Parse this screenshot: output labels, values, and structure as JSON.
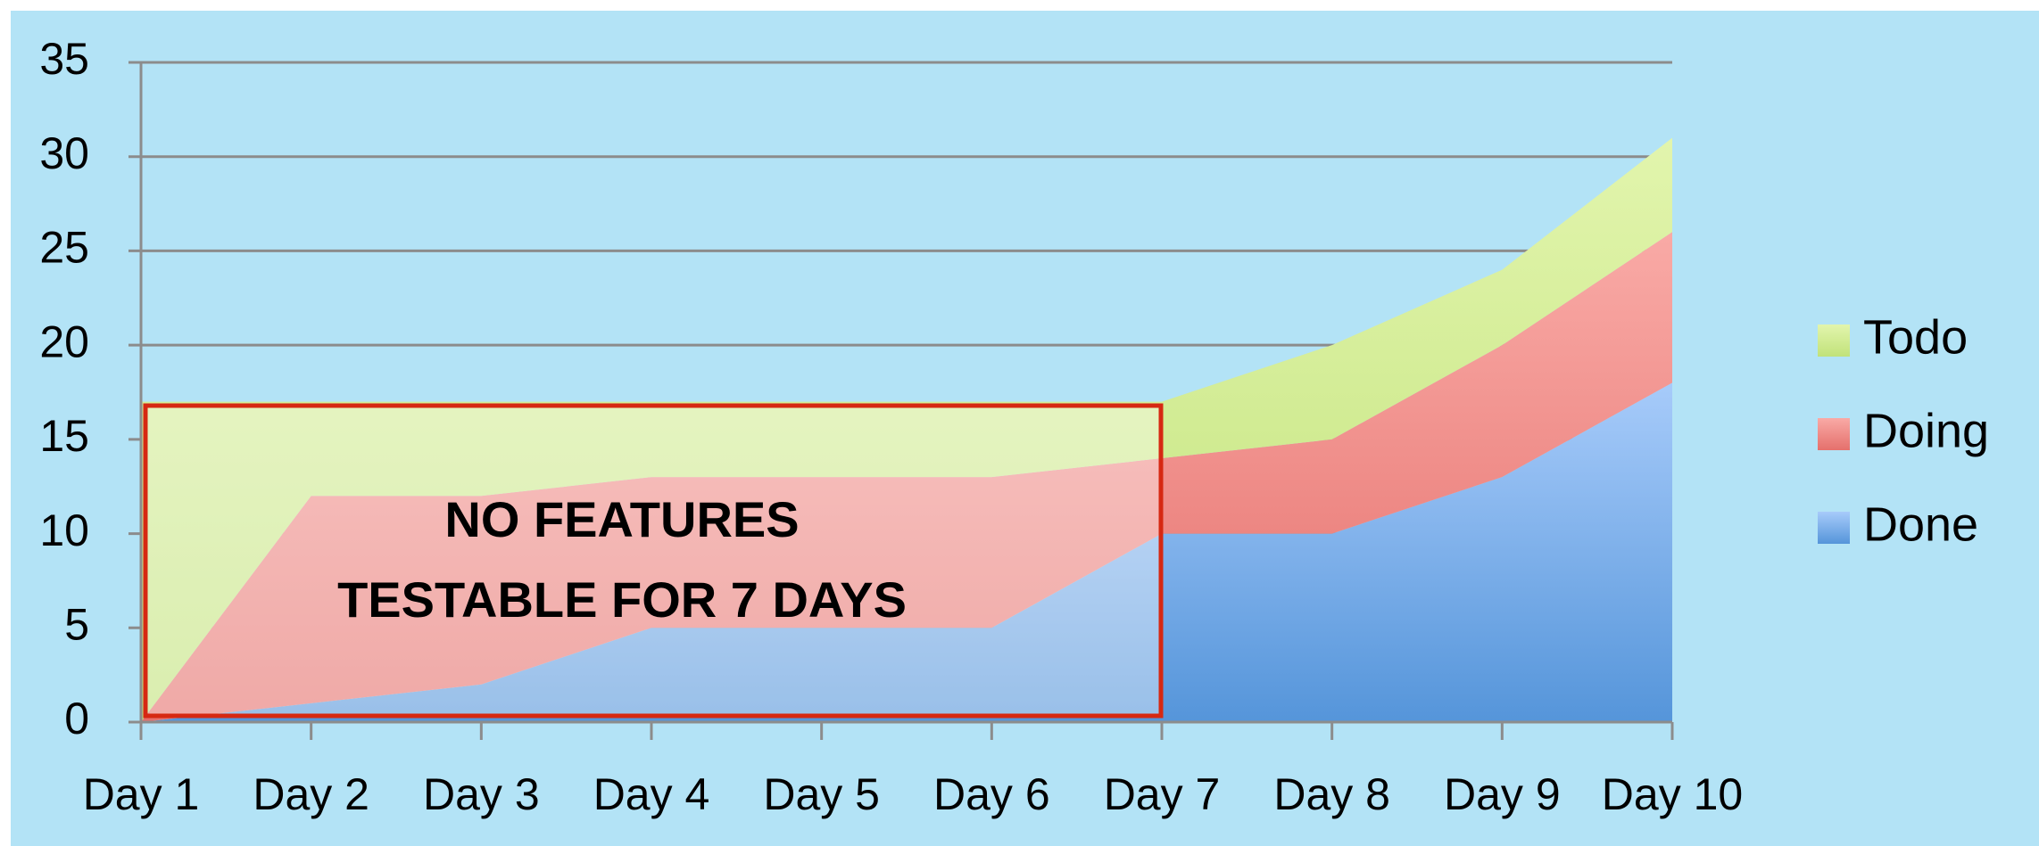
{
  "chart_data": {
    "type": "stacked-area",
    "categories": [
      "Day 1",
      "Day 2",
      "Day 3",
      "Day 4",
      "Day 5",
      "Day 6",
      "Day 7",
      "Day 8",
      "Day 9",
      "Day 10"
    ],
    "series": [
      {
        "name": "Done",
        "color": "#6ea4e6",
        "values": [
          0,
          1,
          2,
          5,
          5,
          5,
          10,
          10,
          13,
          18
        ]
      },
      {
        "name": "Doing",
        "color": "#f2928f",
        "values": [
          0,
          11,
          10,
          8,
          8,
          8,
          4,
          5,
          7,
          8
        ]
      },
      {
        "name": "Todo",
        "color": "#d3eb95",
        "values": [
          17,
          5,
          5,
          4,
          4,
          4,
          3,
          5,
          4,
          5
        ]
      }
    ],
    "ylim": [
      0,
      35
    ],
    "yticks": [
      0,
      5,
      10,
      15,
      20,
      25,
      30,
      35
    ],
    "grid": true,
    "annotation": [
      "NO FEATURES",
      "TESTABLE FOR  7 DAYS"
    ]
  }
}
